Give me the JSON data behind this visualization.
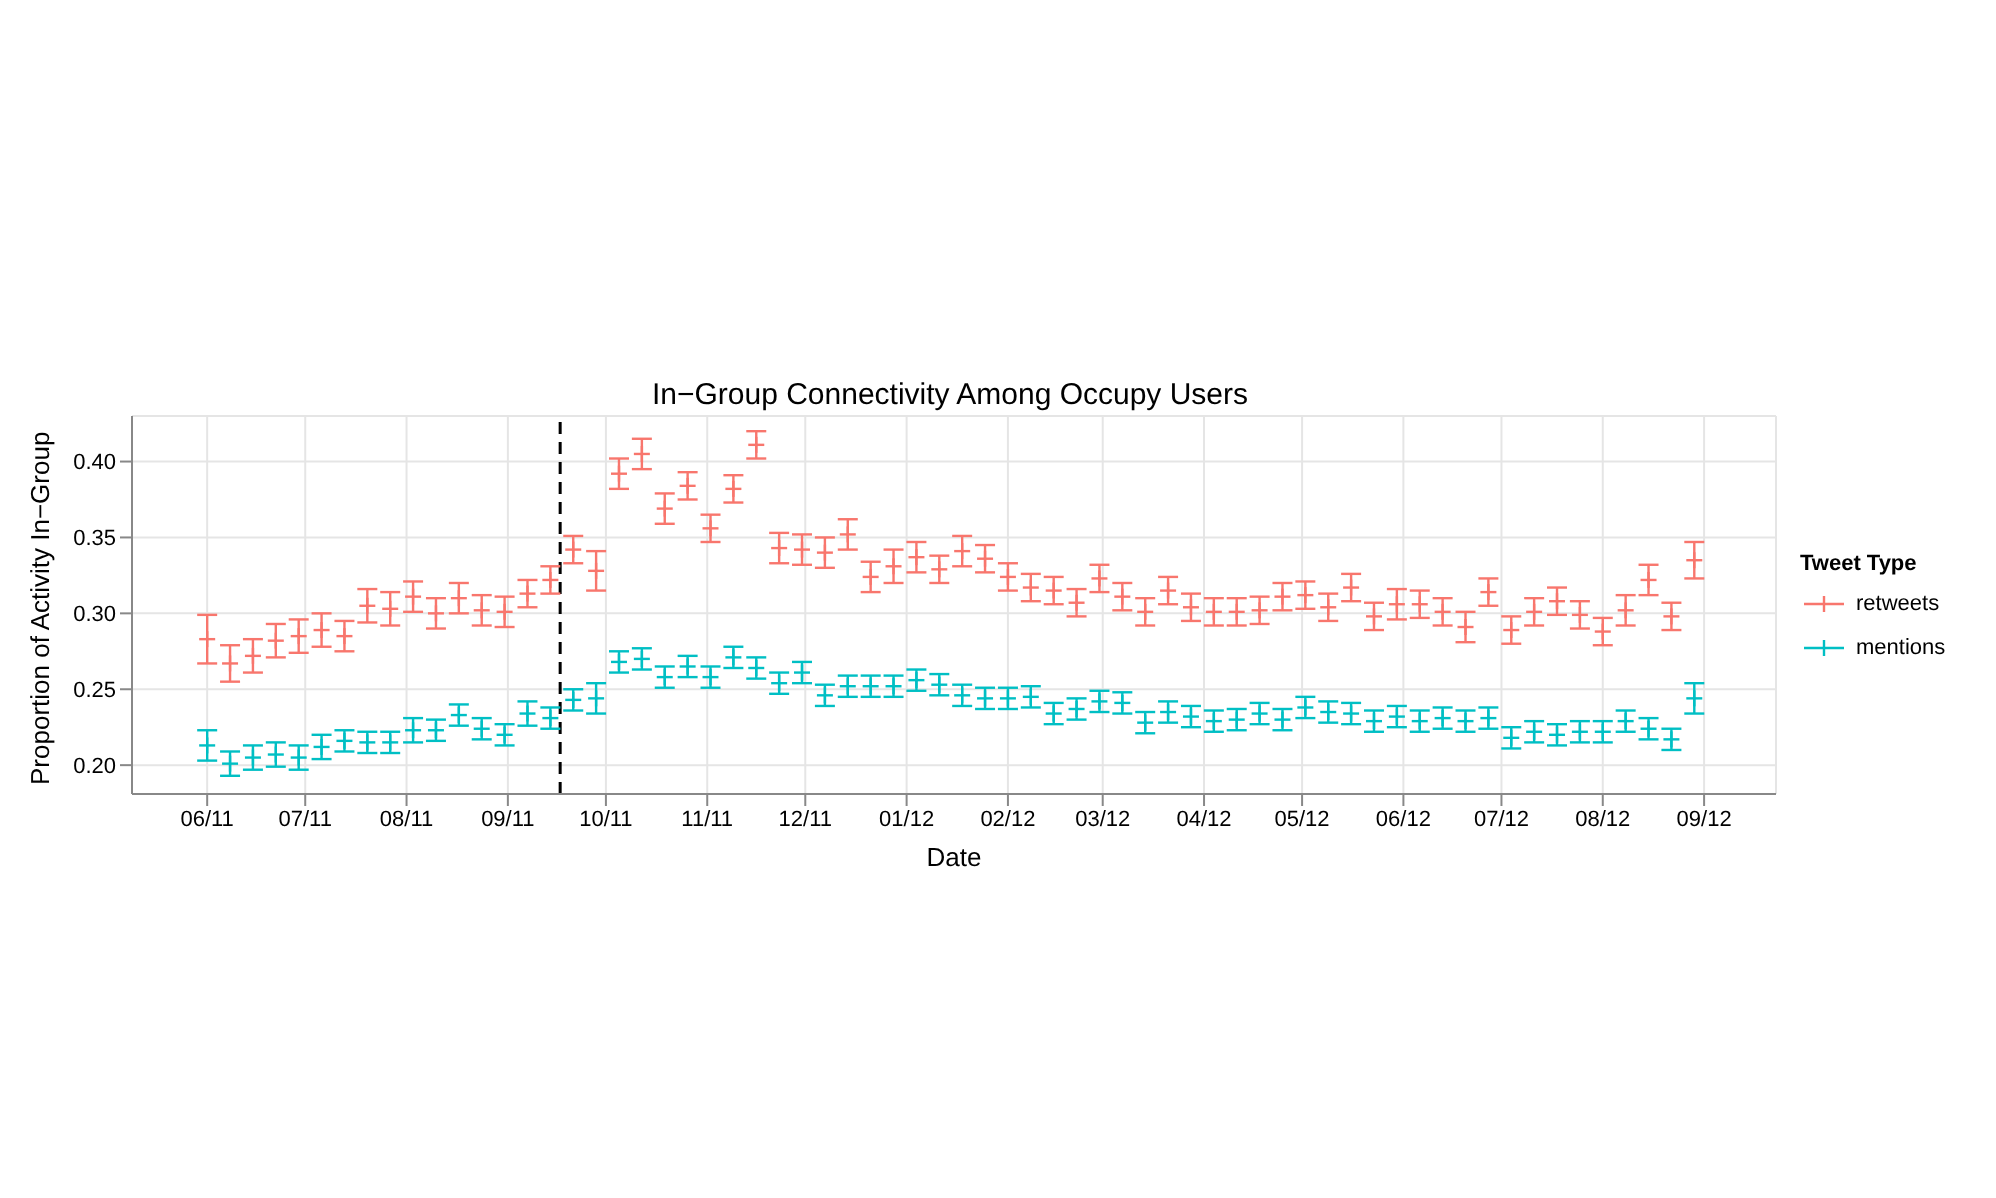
{
  "chart_data": {
    "type": "scatter",
    "title": "In−Group Connectivity Among Occupy Users",
    "xlabel": "Date",
    "ylabel": "Proportion of Activity In−Group",
    "legend_title": "Tweet Type",
    "legend": "right",
    "grid": true,
    "marker": "cross",
    "x": [
      "2011-06-01",
      "2011-06-08",
      "2011-06-15",
      "2011-06-22",
      "2011-06-29",
      "2011-07-06",
      "2011-07-13",
      "2011-07-20",
      "2011-07-27",
      "2011-08-03",
      "2011-08-10",
      "2011-08-17",
      "2011-08-24",
      "2011-08-31",
      "2011-09-07",
      "2011-09-14",
      "2011-09-21",
      "2011-09-28",
      "2011-10-05",
      "2011-10-12",
      "2011-10-19",
      "2011-10-26",
      "2011-11-02",
      "2011-11-09",
      "2011-11-16",
      "2011-11-23",
      "2011-11-30",
      "2011-12-07",
      "2011-12-14",
      "2011-12-21",
      "2011-12-28",
      "2012-01-04",
      "2012-01-11",
      "2012-01-18",
      "2012-01-25",
      "2012-02-01",
      "2012-02-08",
      "2012-02-15",
      "2012-02-22",
      "2012-02-29",
      "2012-03-07",
      "2012-03-14",
      "2012-03-21",
      "2012-03-28",
      "2012-04-04",
      "2012-04-11",
      "2012-04-18",
      "2012-04-25",
      "2012-05-02",
      "2012-05-09",
      "2012-05-16",
      "2012-05-23",
      "2012-05-30",
      "2012-06-06",
      "2012-06-13",
      "2012-06-20",
      "2012-06-27",
      "2012-07-04",
      "2012-07-11",
      "2012-07-18",
      "2012-07-25",
      "2012-08-01",
      "2012-08-08",
      "2012-08-15",
      "2012-08-22",
      "2012-08-29"
    ],
    "series": [
      {
        "name": "retweets",
        "color": "#f8766d",
        "values": [
          0.283,
          0.267,
          0.272,
          0.282,
          0.285,
          0.289,
          0.285,
          0.305,
          0.303,
          0.311,
          0.3,
          0.31,
          0.302,
          0.301,
          0.313,
          0.322,
          0.342,
          0.328,
          0.392,
          0.405,
          0.369,
          0.384,
          0.356,
          0.382,
          0.411,
          0.343,
          0.342,
          0.34,
          0.352,
          0.324,
          0.331,
          0.337,
          0.329,
          0.341,
          0.336,
          0.324,
          0.317,
          0.315,
          0.307,
          0.323,
          0.311,
          0.301,
          0.315,
          0.304,
          0.301,
          0.301,
          0.302,
          0.311,
          0.312,
          0.304,
          0.317,
          0.298,
          0.306,
          0.306,
          0.301,
          0.291,
          0.314,
          0.289,
          0.301,
          0.308,
          0.299,
          0.288,
          0.302,
          0.322,
          0.298,
          0.335
        ],
        "errors": [
          0.016,
          0.012,
          0.011,
          0.011,
          0.011,
          0.011,
          0.01,
          0.011,
          0.011,
          0.01,
          0.01,
          0.01,
          0.01,
          0.01,
          0.009,
          0.009,
          0.009,
          0.013,
          0.01,
          0.01,
          0.01,
          0.009,
          0.009,
          0.009,
          0.009,
          0.01,
          0.01,
          0.01,
          0.01,
          0.01,
          0.011,
          0.01,
          0.009,
          0.01,
          0.009,
          0.009,
          0.009,
          0.009,
          0.009,
          0.009,
          0.009,
          0.009,
          0.009,
          0.009,
          0.009,
          0.009,
          0.009,
          0.009,
          0.009,
          0.009,
          0.009,
          0.009,
          0.01,
          0.009,
          0.009,
          0.01,
          0.009,
          0.009,
          0.009,
          0.009,
          0.009,
          0.009,
          0.01,
          0.01,
          0.009,
          0.012
        ]
      },
      {
        "name": "mentions",
        "color": "#00bfc4",
        "values": [
          0.213,
          0.201,
          0.205,
          0.207,
          0.205,
          0.212,
          0.216,
          0.215,
          0.215,
          0.223,
          0.223,
          0.233,
          0.224,
          0.22,
          0.234,
          0.231,
          0.243,
          0.244,
          0.268,
          0.27,
          0.258,
          0.265,
          0.258,
          0.271,
          0.264,
          0.254,
          0.261,
          0.246,
          0.252,
          0.252,
          0.252,
          0.256,
          0.253,
          0.246,
          0.244,
          0.244,
          0.245,
          0.234,
          0.237,
          0.242,
          0.241,
          0.228,
          0.235,
          0.232,
          0.229,
          0.23,
          0.234,
          0.23,
          0.238,
          0.235,
          0.234,
          0.229,
          0.232,
          0.229,
          0.231,
          0.229,
          0.231,
          0.218,
          0.222,
          0.22,
          0.222,
          0.222,
          0.229,
          0.224,
          0.217,
          0.244
        ],
        "errors": [
          0.01,
          0.008,
          0.008,
          0.008,
          0.008,
          0.008,
          0.007,
          0.007,
          0.007,
          0.008,
          0.007,
          0.007,
          0.007,
          0.007,
          0.008,
          0.007,
          0.007,
          0.01,
          0.007,
          0.007,
          0.007,
          0.007,
          0.007,
          0.007,
          0.007,
          0.007,
          0.007,
          0.007,
          0.007,
          0.007,
          0.007,
          0.007,
          0.007,
          0.007,
          0.007,
          0.007,
          0.007,
          0.007,
          0.007,
          0.007,
          0.007,
          0.007,
          0.007,
          0.007,
          0.007,
          0.007,
          0.007,
          0.007,
          0.007,
          0.007,
          0.007,
          0.007,
          0.007,
          0.007,
          0.007,
          0.007,
          0.007,
          0.007,
          0.007,
          0.007,
          0.007,
          0.007,
          0.007,
          0.007,
          0.007,
          0.01
        ]
      }
    ],
    "xlim": [
      "2011-05-09",
      "2012-09-23"
    ],
    "xticks": [
      {
        "value": "2011-06-01",
        "label": "06/11"
      },
      {
        "value": "2011-07-01",
        "label": "07/11"
      },
      {
        "value": "2011-08-01",
        "label": "08/11"
      },
      {
        "value": "2011-09-01",
        "label": "09/11"
      },
      {
        "value": "2011-10-01",
        "label": "10/11"
      },
      {
        "value": "2011-11-01",
        "label": "11/11"
      },
      {
        "value": "2011-12-01",
        "label": "12/11"
      },
      {
        "value": "2012-01-01",
        "label": "01/12"
      },
      {
        "value": "2012-02-01",
        "label": "02/12"
      },
      {
        "value": "2012-03-01",
        "label": "03/12"
      },
      {
        "value": "2012-04-01",
        "label": "04/12"
      },
      {
        "value": "2012-05-01",
        "label": "05/12"
      },
      {
        "value": "2012-06-01",
        "label": "06/12"
      },
      {
        "value": "2012-07-01",
        "label": "07/12"
      },
      {
        "value": "2012-08-01",
        "label": "08/12"
      },
      {
        "value": "2012-09-01",
        "label": "09/12"
      }
    ],
    "ylim": [
      0.181,
      0.43
    ],
    "yticks": [
      {
        "value": 0.2,
        "label": "0.20"
      },
      {
        "value": 0.25,
        "label": "0.25"
      },
      {
        "value": 0.3,
        "label": "0.30"
      },
      {
        "value": 0.35,
        "label": "0.35"
      },
      {
        "value": 0.4,
        "label": "0.40"
      }
    ],
    "ref_lines": [
      {
        "axis": "x",
        "value": "2011-09-17",
        "color": "#000000",
        "line_style": "dashed"
      }
    ]
  }
}
